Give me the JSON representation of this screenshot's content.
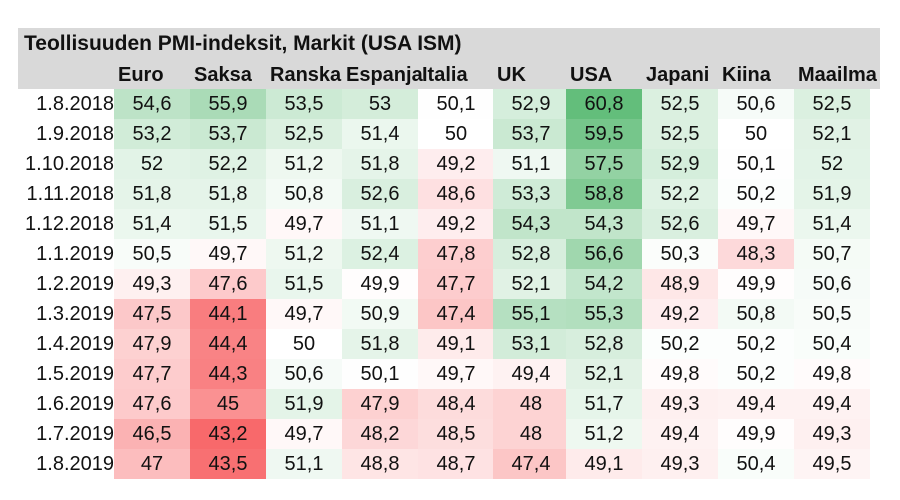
{
  "chart_data": {
    "type": "heatmap",
    "title": "Teollisuuden PMI-indeksit, Markit (USA ISM)",
    "columns": [
      "Euro",
      "Saksa",
      "Ranska",
      "Espanja",
      "Italia",
      "UK",
      "USA",
      "Japani",
      "Kiina",
      "Maailma"
    ],
    "rows": [
      "1.8.2018",
      "1.9.2018",
      "1.10.2018",
      "1.11.2018",
      "1.12.2018",
      "1.1.2019",
      "1.2.2019",
      "1.3.2019",
      "1.4.2019",
      "1.5.2019",
      "1.6.2019",
      "1.7.2019",
      "1.8.2019"
    ],
    "values": [
      [
        "54,6",
        "55,9",
        "53,5",
        "53",
        "50,1",
        "52,9",
        "60,8",
        "52,5",
        "50,6",
        "52,5"
      ],
      [
        "53,2",
        "53,7",
        "52,5",
        "51,4",
        "50",
        "53,7",
        "59,5",
        "52,5",
        "50",
        "52,1"
      ],
      [
        "52",
        "52,2",
        "51,2",
        "51,8",
        "49,2",
        "51,1",
        "57,5",
        "52,9",
        "50,1",
        "52"
      ],
      [
        "51,8",
        "51,8",
        "50,8",
        "52,6",
        "48,6",
        "53,3",
        "58,8",
        "52,2",
        "50,2",
        "51,9"
      ],
      [
        "51,4",
        "51,5",
        "49,7",
        "51,1",
        "49,2",
        "54,3",
        "54,3",
        "52,6",
        "49,7",
        "51,4"
      ],
      [
        "50,5",
        "49,7",
        "51,2",
        "52,4",
        "47,8",
        "52,8",
        "56,6",
        "50,3",
        "48,3",
        "50,7"
      ],
      [
        "49,3",
        "47,6",
        "51,5",
        "49,9",
        "47,7",
        "52,1",
        "54,2",
        "48,9",
        "49,9",
        "50,6"
      ],
      [
        "47,5",
        "44,1",
        "49,7",
        "50,9",
        "47,4",
        "55,1",
        "55,3",
        "49,2",
        "50,8",
        "50,5"
      ],
      [
        "47,9",
        "44,4",
        "50",
        "51,8",
        "49,1",
        "53,1",
        "52,8",
        "50,2",
        "50,2",
        "50,4"
      ],
      [
        "47,7",
        "44,3",
        "50,6",
        "50,1",
        "49,7",
        "49,4",
        "52,1",
        "49,8",
        "50,2",
        "49,8"
      ],
      [
        "47,6",
        "45",
        "51,9",
        "47,9",
        "48,4",
        "48",
        "51,7",
        "49,3",
        "49,4",
        "49,4"
      ],
      [
        "46,5",
        "43,2",
        "49,7",
        "48,2",
        "48,5",
        "48",
        "51,2",
        "49,4",
        "49,9",
        "49,3"
      ],
      [
        "47",
        "43,5",
        "51,1",
        "48,8",
        "48,7",
        "47,4",
        "49,1",
        "49,3",
        "50,4",
        "49,5"
      ]
    ],
    "color_scale": {
      "low": "#f8696b",
      "mid": "#ffffff",
      "high": "#63be7b",
      "mid_value": 50
    }
  }
}
